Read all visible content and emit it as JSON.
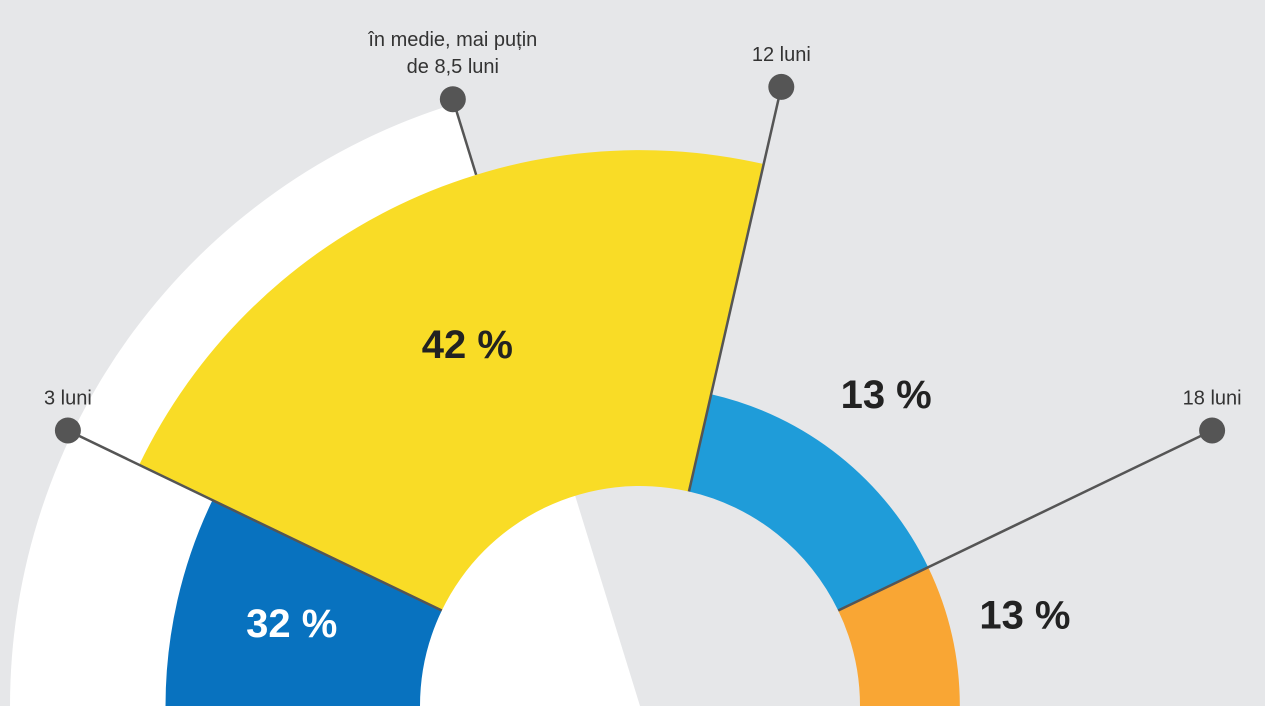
{
  "chart_data": {
    "type": "polar_area",
    "xlim": [
      0,
      21
    ],
    "x": [
      0,
      3,
      12,
      18
    ],
    "values": [
      32,
      42,
      13,
      13
    ],
    "value_labels": [
      "32 %",
      "42 %",
      "13 %",
      "13 %"
    ],
    "colors": [
      "#0872bf",
      "#f9dc26",
      "#1f9cd9",
      "#f9a634"
    ],
    "label_colors": [
      "#ffffff",
      "#222222",
      "#222222",
      "#222222"
    ],
    "markers": [
      {
        "value": 3,
        "lines": [
          "3 luni"
        ]
      },
      {
        "value": 8.5,
        "lines": [
          "în medie, mai puțin",
          "de 8,5 luni"
        ]
      },
      {
        "value": 12,
        "lines": [
          "12 luni"
        ]
      },
      {
        "value": 18,
        "lines": [
          "18 luni"
        ]
      }
    ]
  }
}
